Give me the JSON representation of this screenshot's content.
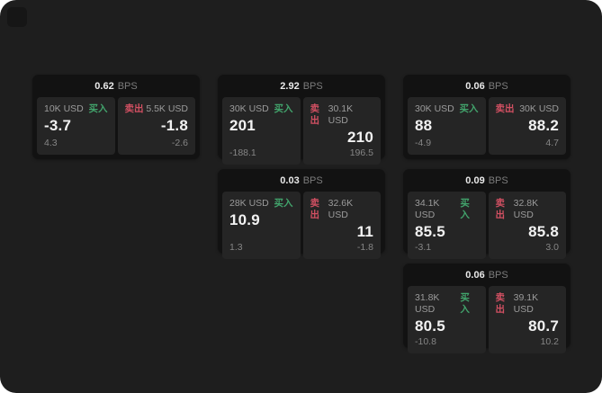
{
  "labels": {
    "buy": "买入",
    "sell": "卖出",
    "bps_unit": "BPS"
  },
  "colors": {
    "page_bg": "#1e1e1e",
    "card_bg": "#121212",
    "panel_bg": "#252525",
    "buy_green": "#42a46c",
    "sell_red": "#d15062"
  },
  "cards": [
    {
      "col": 1,
      "row": 1,
      "bps": "0.62",
      "buy": {
        "amount": "10K USD",
        "price": "-3.7",
        "delta": "4.3"
      },
      "sell": {
        "amount": "5.5K USD",
        "price": "-1.8",
        "delta": "-2.6"
      }
    },
    {
      "col": 2,
      "row": 1,
      "bps": "2.92",
      "buy": {
        "amount": "30K USD",
        "price": "201",
        "delta": "-188.1"
      },
      "sell": {
        "amount": "30.1K USD",
        "price": "210",
        "delta": "196.5"
      }
    },
    {
      "col": 3,
      "row": 1,
      "bps": "0.06",
      "buy": {
        "amount": "30K USD",
        "price": "88",
        "delta": "-4.9"
      },
      "sell": {
        "amount": "30K USD",
        "price": "88.2",
        "delta": "4.7"
      }
    },
    {
      "col": 2,
      "row": 2,
      "bps": "0.03",
      "buy": {
        "amount": "28K USD",
        "price": "10.9",
        "delta": "1.3"
      },
      "sell": {
        "amount": "32.6K USD",
        "price": "11",
        "delta": "-1.8"
      }
    },
    {
      "col": 3,
      "row": 2,
      "bps": "0.09",
      "buy": {
        "amount": "34.1K USD",
        "price": "85.5",
        "delta": "-3.1"
      },
      "sell": {
        "amount": "32.8K USD",
        "price": "85.8",
        "delta": "3.0"
      }
    },
    {
      "col": 3,
      "row": 3,
      "bps": "0.06",
      "buy": {
        "amount": "31.8K USD",
        "price": "80.5",
        "delta": "-10.8"
      },
      "sell": {
        "amount": "39.1K USD",
        "price": "80.7",
        "delta": "10.2"
      }
    }
  ]
}
